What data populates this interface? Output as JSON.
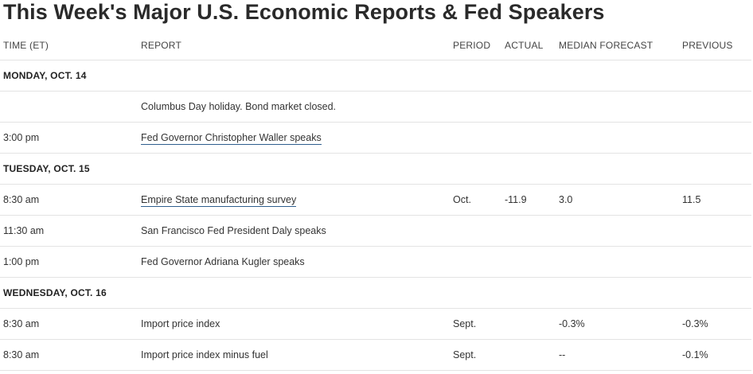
{
  "title": "This Week's Major U.S. Economic Reports & Fed Speakers",
  "columns": {
    "time": "TIME (ET)",
    "report": "REPORT",
    "period": "PERIOD",
    "actual": "ACTUAL",
    "median": "MEDIAN FORECAST",
    "previous": "PREVIOUS"
  },
  "days": [
    {
      "label": "MONDAY, OCT. 14",
      "rows": [
        {
          "time": "",
          "report": "Columbus Day holiday. Bond market closed.",
          "link": false,
          "period": "",
          "actual": "",
          "median": "",
          "previous": ""
        },
        {
          "time": "3:00 pm",
          "report": "Fed Governor Christopher Waller speaks",
          "link": true,
          "period": "",
          "actual": "",
          "median": "",
          "previous": ""
        }
      ]
    },
    {
      "label": "TUESDAY, OCT. 15",
      "rows": [
        {
          "time": "8:30 am",
          "report": "Empire State manufacturing survey",
          "link": true,
          "period": "Oct.",
          "actual": "-11.9",
          "median": "3.0",
          "previous": "11.5"
        },
        {
          "time": "11:30 am",
          "report": "San Francisco Fed President Daly speaks",
          "link": false,
          "period": "",
          "actual": "",
          "median": "",
          "previous": ""
        },
        {
          "time": "1:00 pm",
          "report": "Fed Governor Adriana Kugler speaks",
          "link": false,
          "period": "",
          "actual": "",
          "median": "",
          "previous": ""
        }
      ]
    },
    {
      "label": "WEDNESDAY, OCT. 16",
      "rows": [
        {
          "time": "8:30 am",
          "report": "Import price index",
          "link": false,
          "period": "Sept.",
          "actual": "",
          "median": "-0.3%",
          "previous": "-0.3%"
        },
        {
          "time": "8:30 am",
          "report": "Import price index minus fuel",
          "link": false,
          "period": "Sept.",
          "actual": "",
          "median": "--",
          "previous": "-0.1%"
        }
      ]
    }
  ]
}
